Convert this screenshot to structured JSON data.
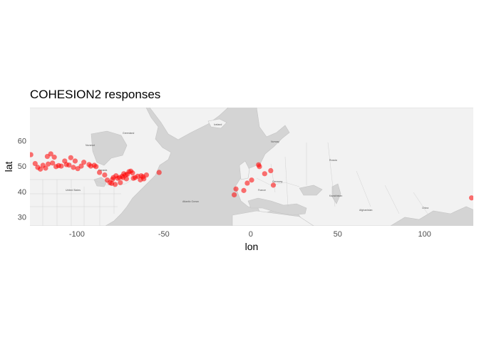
{
  "chart_data": {
    "type": "scatter",
    "title": "COHESION2 responses",
    "xlabel": "lon",
    "ylabel": "lat",
    "xlim": [
      -127,
      128
    ],
    "ylim": [
      26.5,
      73
    ],
    "x_ticks": [
      -100,
      -50,
      0,
      50,
      100
    ],
    "y_ticks": [
      30,
      40,
      50,
      60
    ],
    "x_tick_labels": [
      "-100",
      "-50",
      "0",
      "50",
      "100"
    ],
    "y_tick_labels": [
      "30",
      "40",
      "50",
      "60"
    ],
    "grid": false,
    "background": "basemap",
    "marker_color": "#ff0000",
    "series": [
      {
        "points": [
          [
            -126.5,
            54.5
          ],
          [
            -124,
            51.0
          ],
          [
            -122.5,
            49.5
          ],
          [
            -121,
            48.8
          ],
          [
            -119.5,
            50.3
          ],
          [
            -118,
            49.2
          ],
          [
            -117,
            53.8
          ],
          [
            -116.5,
            50.8
          ],
          [
            -115,
            54.8
          ],
          [
            -114,
            51.2
          ],
          [
            -113,
            53.5
          ],
          [
            -112,
            49.8
          ],
          [
            -110.5,
            50.2
          ],
          [
            -109,
            50.0
          ],
          [
            -107,
            52.0
          ],
          [
            -106,
            50.6
          ],
          [
            -104.5,
            50.4
          ],
          [
            -103.5,
            53.3
          ],
          [
            -102,
            49.5
          ],
          [
            -101,
            52.0
          ],
          [
            -99.5,
            49.0
          ],
          [
            -97.5,
            50.0
          ],
          [
            -96,
            51.5
          ],
          [
            -93,
            50.6
          ],
          [
            -92,
            50.0
          ],
          [
            -90,
            50.3
          ],
          [
            -89,
            49.8
          ],
          [
            -87,
            47.5
          ],
          [
            -84,
            46.5
          ],
          [
            -82.5,
            44.5
          ],
          [
            -81,
            43.5
          ],
          [
            -80,
            43.2
          ],
          [
            -79.5,
            44.8
          ],
          [
            -79,
            45.5
          ],
          [
            -78,
            42.8
          ],
          [
            -77.5,
            46.2
          ],
          [
            -76.5,
            45.2
          ],
          [
            -75.5,
            45.5
          ],
          [
            -75,
            43.5
          ],
          [
            -74,
            46.0
          ],
          [
            -73.5,
            45.5
          ],
          [
            -73,
            47.0
          ],
          [
            -72,
            46.5
          ],
          [
            -71.5,
            45.0
          ],
          [
            -71,
            46.8
          ],
          [
            -70,
            47.8
          ],
          [
            -69,
            48.0
          ],
          [
            -68,
            47.3
          ],
          [
            -67.5,
            45.2
          ],
          [
            -66.5,
            45.5
          ],
          [
            -65,
            46.0
          ],
          [
            -63.5,
            44.6
          ],
          [
            -63,
            46.2
          ],
          [
            -62,
            45.8
          ],
          [
            -61.5,
            45.0
          ],
          [
            -60,
            46.5
          ],
          [
            -52.7,
            47.5
          ],
          [
            -9.5,
            38.7
          ],
          [
            -8.5,
            41.0
          ],
          [
            -4,
            40.4
          ],
          [
            -2,
            43.3
          ],
          [
            0.5,
            44.5
          ],
          [
            4.5,
            50.5
          ],
          [
            5,
            49.8
          ],
          [
            8,
            47.0
          ],
          [
            11.5,
            48.2
          ],
          [
            13,
            42.5
          ],
          [
            127,
            37.5
          ]
        ]
      }
    ]
  }
}
